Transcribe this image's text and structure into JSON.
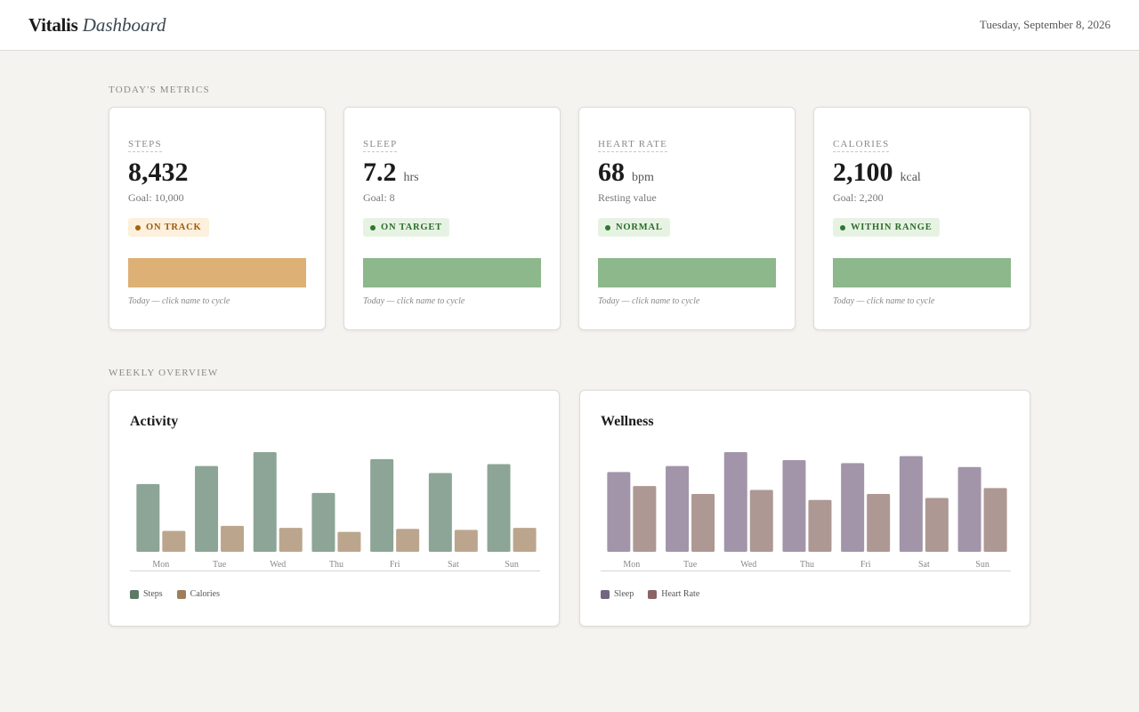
{
  "header": {
    "brand_bold": "Vitalis",
    "brand_italic": "Dashboard",
    "date": "Tuesday, September 8, 2026"
  },
  "sections": {
    "today": "TODAY'S METRICS",
    "weekly": "WEEKLY OVERVIEW"
  },
  "metrics": [
    {
      "name": "STEPS",
      "value": "8,432",
      "unit": "",
      "sub": "Goal: 10,000",
      "badge": "ON TRACK",
      "status": "warn",
      "progress": 1.0,
      "note": "Today — click name to cycle"
    },
    {
      "name": "SLEEP",
      "value": "7.2",
      "unit": "hrs",
      "sub": "Goal: 8",
      "badge": "ON TARGET",
      "status": "ok",
      "progress": 1.0,
      "note": "Today — click name to cycle"
    },
    {
      "name": "HEART RATE",
      "value": "68",
      "unit": "bpm",
      "sub": "Resting value",
      "badge": "NORMAL",
      "status": "ok",
      "progress": 1.0,
      "note": "Today — click name to cycle"
    },
    {
      "name": "CALORIES",
      "value": "2,100",
      "unit": "kcal",
      "sub": "Goal: 2,200",
      "badge": "WITHIN RANGE",
      "status": "ok",
      "progress": 1.0,
      "note": "Today — click name to cycle"
    }
  ],
  "chart_data": [
    {
      "type": "bar",
      "title": "Activity",
      "categories": [
        "Mon",
        "Tue",
        "Wed",
        "Thu",
        "Fri",
        "Sat",
        "Sun"
      ],
      "series": [
        {
          "name": "Steps",
          "color": "#8ca596",
          "legend_color": "#5a7a66",
          "values": [
            0.68,
            0.86,
            1.0,
            0.59,
            0.93,
            0.79,
            0.88
          ]
        },
        {
          "name": "Calories",
          "color": "#bba68d",
          "legend_color": "#9f7e5c",
          "values": [
            0.21,
            0.26,
            0.24,
            0.2,
            0.23,
            0.22,
            0.24
          ]
        }
      ],
      "ylim": [
        0,
        1
      ]
    },
    {
      "type": "bar",
      "title": "Wellness",
      "categories": [
        "Mon",
        "Tue",
        "Wed",
        "Thu",
        "Fri",
        "Sat",
        "Sun"
      ],
      "series": [
        {
          "name": "Sleep",
          "color": "#a295a9",
          "legend_color": "#75667f",
          "values": [
            0.8,
            0.86,
            1.0,
            0.92,
            0.89,
            0.96,
            0.85
          ]
        },
        {
          "name": "Heart Rate",
          "color": "#ad9893",
          "legend_color": "#8a6467",
          "values": [
            0.66,
            0.58,
            0.62,
            0.52,
            0.58,
            0.54,
            0.64
          ]
        }
      ],
      "ylim": [
        0,
        1
      ]
    }
  ]
}
